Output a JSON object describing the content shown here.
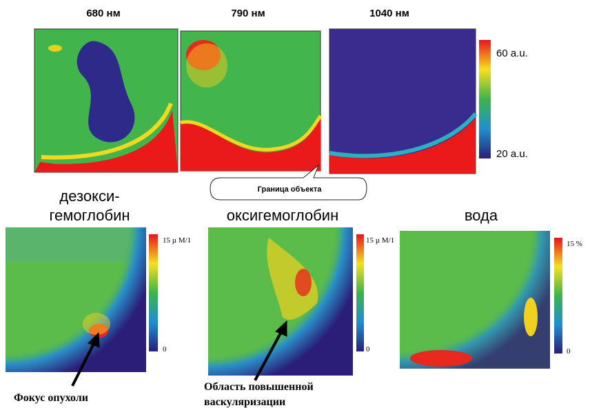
{
  "top_panels": [
    {
      "label": "680 нм"
    },
    {
      "label": "790 нм"
    },
    {
      "label": "1040 нм"
    }
  ],
  "top_colorbar": {
    "max": "60 a.u.",
    "min": "20 a.u."
  },
  "callout": "Граница объекта",
  "bottom_panels": [
    {
      "title": [
        "дезокси-",
        "гемоглобин"
      ],
      "max": "15 µ M/1",
      "min": "0"
    },
    {
      "title": [
        "оксигемоглобин"
      ],
      "max": "15 µ M/1",
      "min": "0"
    },
    {
      "title": [
        "вода"
      ],
      "max": "15 %",
      "min": "0"
    }
  ],
  "annotations": [
    "Фокус опухоли",
    "Область повышенной",
    "васкуляризации"
  ]
}
